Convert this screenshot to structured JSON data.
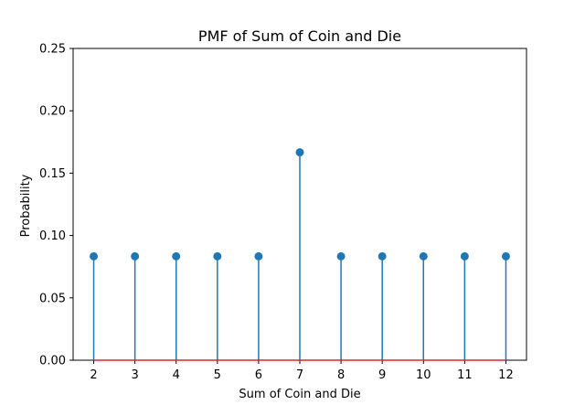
{
  "chart_data": {
    "type": "stem",
    "title": "PMF of Sum of Coin and Die",
    "xlabel": "Sum of Coin and Die",
    "ylabel": "Probability",
    "x": [
      2,
      3,
      4,
      5,
      6,
      7,
      8,
      9,
      10,
      11,
      12
    ],
    "y": [
      0.0833,
      0.0833,
      0.0833,
      0.0833,
      0.0833,
      0.1667,
      0.0833,
      0.0833,
      0.0833,
      0.0833,
      0.0833
    ],
    "xlim": [
      1.5,
      12.5
    ],
    "ylim": [
      0,
      0.25
    ],
    "xticks": [
      "2",
      "3",
      "4",
      "5",
      "6",
      "7",
      "8",
      "9",
      "10",
      "11",
      "12"
    ],
    "yticks": [
      "0.00",
      "0.05",
      "0.10",
      "0.15",
      "0.20",
      "0.25"
    ],
    "grid": false,
    "colors": {
      "stem": "#1f77b4",
      "marker": "#1f77b4",
      "baseline": "#d62728"
    }
  }
}
